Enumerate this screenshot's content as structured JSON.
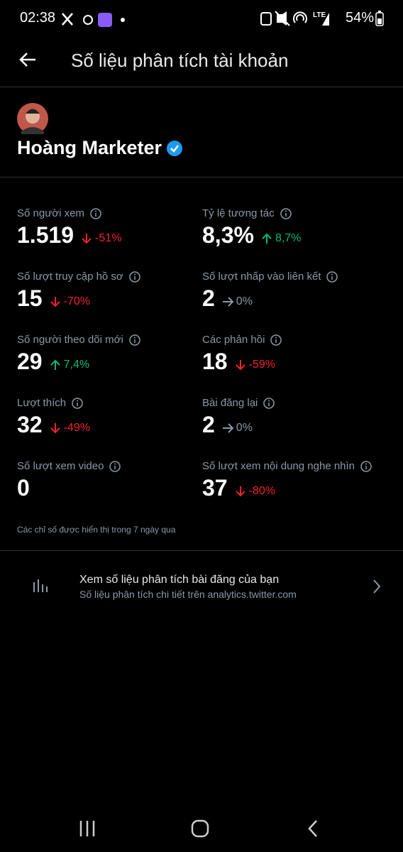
{
  "status_bar": {
    "time": "02:38",
    "network": "LTE",
    "battery": "54%"
  },
  "header": {
    "title": "Số liệu phân tích tài khoản"
  },
  "profile": {
    "name": "Hoàng Marketer"
  },
  "metrics": [
    {
      "label": "Số người xem",
      "value": "1.519",
      "change": "-51%",
      "trend": "down"
    },
    {
      "label": "Tỷ lệ tương tác",
      "value": "8,3%",
      "change": "8,7%",
      "trend": "up"
    },
    {
      "label": "Số lượt truy cập hồ sơ",
      "value": "15",
      "change": "-70%",
      "trend": "down"
    },
    {
      "label": "Số lượt nhấp vào liên kết",
      "value": "2",
      "change": "0%",
      "trend": "flat"
    },
    {
      "label": "Số người theo dõi mới",
      "value": "29",
      "change": "7,4%",
      "trend": "up"
    },
    {
      "label": "Các phản hồi",
      "value": "18",
      "change": "-59%",
      "trend": "down"
    },
    {
      "label": "Lượt thích",
      "value": "32",
      "change": "-49%",
      "trend": "down"
    },
    {
      "label": "Bài đăng lại",
      "value": "2",
      "change": "0%",
      "trend": "flat"
    },
    {
      "label": "Số lượt xem video",
      "value": "0",
      "change": null,
      "trend": null
    },
    {
      "label": "Số lượt xem nội dung nghe nhìn",
      "value": "37",
      "change": "-80%",
      "trend": "down"
    }
  ],
  "footnote": "Các chỉ số được hiển thị trong 7 ngày qua",
  "link": {
    "title": "Xem số liệu phân tích bài đăng của bạn",
    "subtitle": "Số liệu phân tích chi tiết trên analytics.twitter.com"
  }
}
